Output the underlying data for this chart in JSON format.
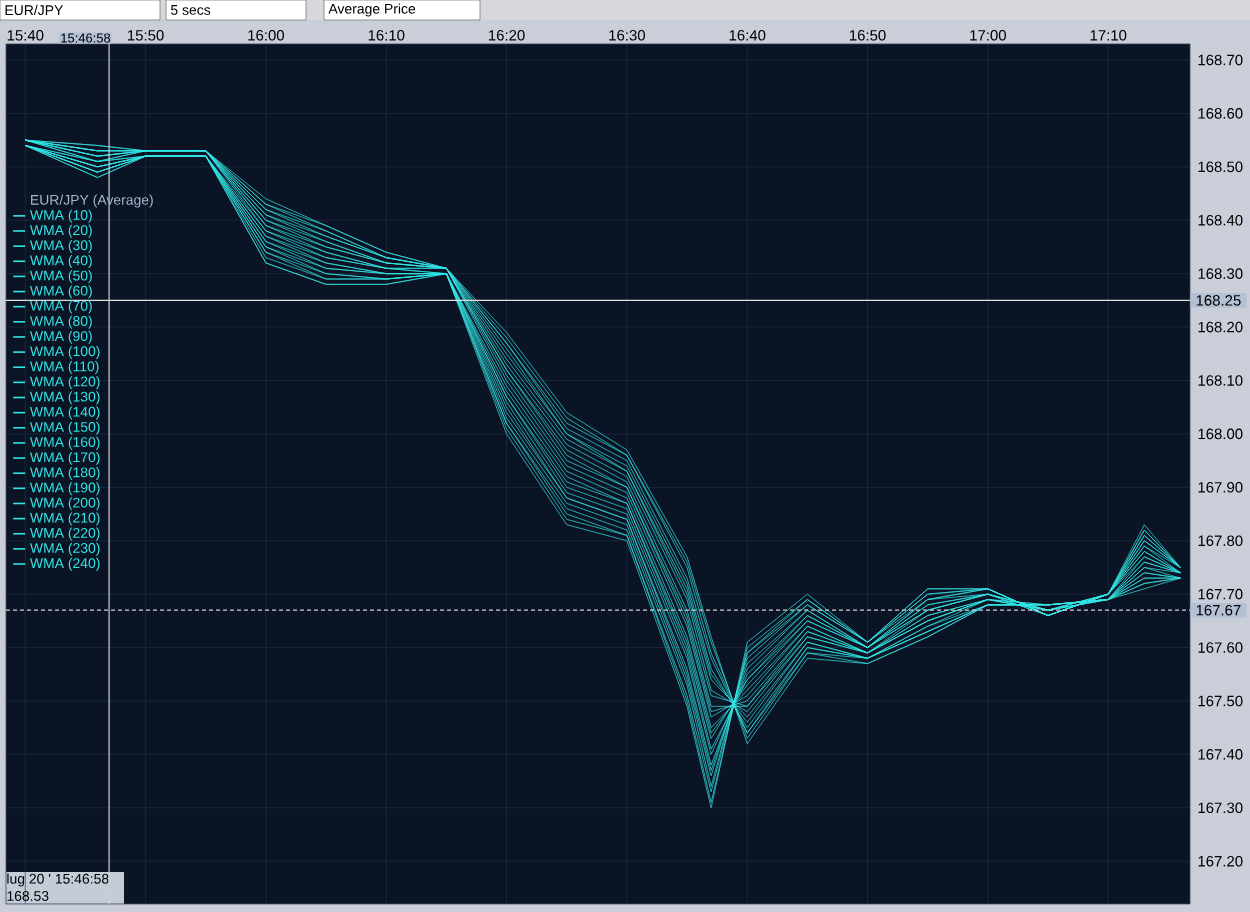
{
  "chart_data": {
    "type": "line",
    "legend_title": "EUR/JPY (Average)",
    "annotations": [
      "EUR/JPY",
      "5 secs",
      "Average Price",
      "lug 20 ' 15:46:58",
      "168.53",
      "15:46:58"
    ],
    "x": [
      15.6667,
      15.7667,
      15.8333,
      15.9167,
      16.0,
      16.0833,
      16.1667,
      16.25,
      16.3333,
      16.4167,
      16.5,
      16.5833,
      16.6167,
      16.6667,
      16.75,
      16.8333,
      16.9167,
      17.0,
      17.0833,
      17.1667,
      17.2167,
      17.2667
    ],
    "xlim": [
      15.64,
      17.28
    ],
    "xticks": [
      {
        "value": 15.6667,
        "label": "15:40"
      },
      {
        "value": 15.8333,
        "label": "15:50"
      },
      {
        "value": 16.0,
        "label": "16:00"
      },
      {
        "value": 16.1667,
        "label": "16:10"
      },
      {
        "value": 16.3333,
        "label": "16:20"
      },
      {
        "value": 16.5,
        "label": "16:30"
      },
      {
        "value": 16.6667,
        "label": "16:40"
      },
      {
        "value": 16.8333,
        "label": "16:50"
      },
      {
        "value": 17.0,
        "label": "17:00"
      },
      {
        "value": 17.1667,
        "label": "17:10"
      }
    ],
    "ylim": [
      167.12,
      168.73
    ],
    "yticks": [
      {
        "value": 167.2,
        "label": "167.20"
      },
      {
        "value": 167.3,
        "label": "167.30"
      },
      {
        "value": 167.4,
        "label": "167.40"
      },
      {
        "value": 167.5,
        "label": "167.50"
      },
      {
        "value": 167.6,
        "label": "167.60"
      },
      {
        "value": 167.7,
        "label": "167.70"
      },
      {
        "value": 167.8,
        "label": "167.80"
      },
      {
        "value": 167.9,
        "label": "167.90"
      },
      {
        "value": 168.0,
        "label": "168.00"
      },
      {
        "value": 168.1,
        "label": "168.10"
      },
      {
        "value": 168.2,
        "label": "168.20"
      },
      {
        "value": 168.3,
        "label": "168.30"
      },
      {
        "value": 168.4,
        "label": "168.40"
      },
      {
        "value": 168.5,
        "label": "168.50"
      },
      {
        "value": 168.6,
        "label": "168.60"
      },
      {
        "value": 168.7,
        "label": "168.70"
      }
    ],
    "grid": true,
    "legend": "left",
    "marker": "none",
    "line_style": "solid",
    "ref_lines": [
      {
        "axis": "y",
        "value": 168.25,
        "label": "168.25",
        "color": "#e0e0e0",
        "line_style": "solid"
      },
      {
        "axis": "y",
        "value": 167.67,
        "label": "167.67",
        "color": "#d0d0d0",
        "line_style": "dashed"
      },
      {
        "axis": "x",
        "value": 15.78278,
        "color": "#d0d0d0",
        "line_style": "solid"
      }
    ],
    "series": [
      {
        "name": "WMA (10)",
        "color": "#33e6e6",
        "values": [
          168.54,
          168.48,
          168.52,
          168.52,
          168.32,
          168.28,
          168.28,
          168.3,
          168.0,
          167.83,
          167.8,
          167.49,
          167.3,
          167.61,
          167.7,
          167.61,
          167.71,
          167.71,
          167.66,
          167.7,
          167.83,
          167.75
        ]
      },
      {
        "name": "WMA (20)",
        "color": "#33e6e6",
        "values": [
          168.54,
          168.48,
          168.52,
          168.52,
          168.32,
          168.28,
          168.28,
          168.3,
          168.01,
          167.84,
          167.81,
          167.5,
          167.31,
          167.6,
          167.69,
          167.61,
          167.71,
          167.71,
          167.66,
          167.7,
          167.82,
          167.75
        ]
      },
      {
        "name": "WMA (30)",
        "color": "#33e6e6",
        "values": [
          168.54,
          168.49,
          168.52,
          168.52,
          168.33,
          168.29,
          168.29,
          168.3,
          168.02,
          167.85,
          167.81,
          167.51,
          167.33,
          167.59,
          167.69,
          167.61,
          167.7,
          167.71,
          167.66,
          167.7,
          167.82,
          167.75
        ]
      },
      {
        "name": "WMA (40)",
        "color": "#33e6e6",
        "values": [
          168.54,
          168.49,
          168.52,
          168.52,
          168.34,
          168.29,
          168.29,
          168.3,
          168.02,
          167.86,
          167.82,
          167.53,
          167.34,
          167.59,
          167.68,
          167.61,
          167.7,
          167.71,
          167.66,
          167.7,
          167.81,
          167.75
        ]
      },
      {
        "name": "WMA (50)",
        "color": "#33e6e6",
        "values": [
          168.54,
          168.49,
          168.52,
          168.52,
          168.34,
          168.3,
          168.29,
          168.3,
          168.03,
          167.87,
          167.83,
          167.54,
          167.36,
          167.58,
          167.68,
          167.61,
          167.69,
          167.71,
          167.66,
          167.7,
          167.81,
          167.75
        ]
      },
      {
        "name": "WMA (60)",
        "color": "#33e6e6",
        "values": [
          168.54,
          168.49,
          168.52,
          168.52,
          168.35,
          168.3,
          168.29,
          168.3,
          168.04,
          167.88,
          167.84,
          167.55,
          167.37,
          167.57,
          167.67,
          167.6,
          167.69,
          167.71,
          167.66,
          167.7,
          167.8,
          167.75
        ]
      },
      {
        "name": "WMA (70)",
        "color": "#33e6e6",
        "values": [
          168.54,
          168.5,
          168.52,
          168.52,
          168.35,
          168.31,
          168.3,
          168.3,
          168.05,
          167.88,
          167.84,
          167.56,
          167.38,
          167.56,
          167.67,
          167.6,
          167.69,
          167.7,
          167.66,
          167.7,
          167.8,
          167.75
        ]
      },
      {
        "name": "WMA (80)",
        "color": "#33e6e6",
        "values": [
          168.54,
          168.5,
          168.52,
          168.52,
          168.36,
          168.31,
          168.3,
          168.3,
          168.06,
          167.89,
          167.85,
          167.58,
          167.4,
          167.55,
          167.66,
          167.6,
          167.68,
          167.7,
          167.66,
          167.7,
          167.79,
          167.75
        ]
      },
      {
        "name": "WMA (90)",
        "color": "#33e6e6",
        "values": [
          168.54,
          168.5,
          168.52,
          168.52,
          168.36,
          168.32,
          168.3,
          168.3,
          168.07,
          167.9,
          167.86,
          167.59,
          167.41,
          167.54,
          167.66,
          167.6,
          167.68,
          167.7,
          167.67,
          167.7,
          167.79,
          167.74
        ]
      },
      {
        "name": "WMA (100)",
        "color": "#33e6e6",
        "values": [
          168.54,
          168.5,
          168.52,
          168.52,
          168.37,
          168.32,
          168.3,
          168.3,
          168.07,
          167.91,
          167.87,
          167.6,
          167.43,
          167.54,
          167.65,
          167.6,
          167.67,
          167.7,
          167.67,
          167.7,
          167.78,
          167.74
        ]
      },
      {
        "name": "WMA (110)",
        "color": "#33e6e6",
        "values": [
          168.54,
          168.51,
          168.52,
          168.52,
          168.37,
          168.33,
          168.31,
          168.3,
          168.08,
          167.92,
          167.87,
          167.61,
          167.44,
          167.53,
          167.65,
          167.6,
          167.67,
          167.7,
          167.67,
          167.7,
          167.78,
          167.74
        ]
      },
      {
        "name": "WMA (120)",
        "color": "#33e6e6",
        "values": [
          168.54,
          168.51,
          168.52,
          168.52,
          168.38,
          168.33,
          168.31,
          168.3,
          168.09,
          167.93,
          167.88,
          167.62,
          167.45,
          167.52,
          167.64,
          167.59,
          167.67,
          167.7,
          167.67,
          167.7,
          167.77,
          167.74
        ]
      },
      {
        "name": "WMA (130)",
        "color": "#33e6e6",
        "values": [
          168.55,
          168.51,
          168.53,
          168.53,
          168.38,
          168.34,
          168.31,
          168.31,
          168.1,
          167.94,
          167.89,
          167.64,
          167.47,
          167.51,
          167.64,
          167.59,
          167.66,
          167.69,
          167.67,
          167.69,
          167.77,
          167.74
        ]
      },
      {
        "name": "WMA (140)",
        "color": "#33e6e6",
        "values": [
          168.55,
          168.51,
          168.53,
          168.53,
          168.39,
          168.34,
          168.31,
          168.31,
          168.11,
          167.95,
          167.9,
          167.65,
          167.48,
          167.5,
          167.63,
          167.59,
          167.66,
          167.69,
          167.67,
          167.69,
          167.76,
          167.74
        ]
      },
      {
        "name": "WMA (150)",
        "color": "#33e6e6",
        "values": [
          168.55,
          168.52,
          168.53,
          168.53,
          168.39,
          168.35,
          168.32,
          168.31,
          168.12,
          167.96,
          167.9,
          167.66,
          167.49,
          167.49,
          167.63,
          167.59,
          167.65,
          167.69,
          167.67,
          167.69,
          167.76,
          167.74
        ]
      },
      {
        "name": "WMA (160)",
        "color": "#33e6e6",
        "values": [
          168.55,
          168.52,
          168.53,
          168.53,
          168.4,
          168.35,
          168.32,
          168.31,
          168.12,
          167.97,
          167.91,
          167.67,
          167.51,
          167.49,
          167.62,
          167.59,
          167.65,
          167.69,
          167.67,
          167.69,
          167.75,
          167.74
        ]
      },
      {
        "name": "WMA (170)",
        "color": "#33e6e6",
        "values": [
          168.55,
          168.52,
          168.53,
          168.53,
          168.4,
          168.36,
          168.32,
          168.31,
          168.13,
          167.98,
          167.92,
          167.69,
          167.52,
          167.48,
          167.62,
          167.59,
          167.65,
          167.69,
          167.68,
          167.69,
          167.75,
          167.73
        ]
      },
      {
        "name": "WMA (180)",
        "color": "#33e6e6",
        "values": [
          168.55,
          168.52,
          168.53,
          168.53,
          168.41,
          168.36,
          168.32,
          168.31,
          168.14,
          167.99,
          167.93,
          167.7,
          167.54,
          167.47,
          167.61,
          167.58,
          167.64,
          167.69,
          167.68,
          167.69,
          167.74,
          167.73
        ]
      },
      {
        "name": "WMA (190)",
        "color": "#33e6e6",
        "values": [
          168.55,
          168.53,
          168.53,
          168.53,
          168.41,
          168.37,
          168.33,
          168.31,
          168.15,
          168.0,
          167.93,
          167.71,
          167.55,
          167.46,
          167.61,
          167.58,
          167.64,
          167.68,
          167.68,
          167.69,
          167.74,
          167.73
        ]
      },
      {
        "name": "WMA (200)",
        "color": "#33e6e6",
        "values": [
          168.55,
          168.53,
          168.53,
          168.53,
          168.42,
          168.37,
          168.33,
          168.31,
          168.16,
          168.0,
          167.94,
          167.72,
          167.56,
          167.45,
          167.6,
          167.58,
          167.63,
          167.68,
          167.68,
          167.69,
          167.73,
          167.73
        ]
      },
      {
        "name": "WMA (210)",
        "color": "#33e6e6",
        "values": [
          168.55,
          168.53,
          168.53,
          168.53,
          168.42,
          168.38,
          168.33,
          168.31,
          168.17,
          168.01,
          167.95,
          167.73,
          167.58,
          167.44,
          167.6,
          167.58,
          167.63,
          167.68,
          167.68,
          167.69,
          167.73,
          167.73
        ]
      },
      {
        "name": "WMA (220)",
        "color": "#33e6e6",
        "values": [
          168.55,
          168.53,
          168.53,
          168.53,
          168.43,
          168.38,
          168.33,
          168.31,
          168.17,
          168.02,
          167.96,
          167.75,
          167.59,
          167.44,
          167.59,
          167.58,
          167.63,
          167.68,
          167.68,
          167.69,
          167.72,
          167.73
        ]
      },
      {
        "name": "WMA (230)",
        "color": "#33e6e6",
        "values": [
          168.55,
          168.54,
          168.53,
          168.53,
          168.43,
          168.39,
          168.34,
          168.31,
          168.18,
          168.03,
          167.96,
          167.76,
          167.61,
          167.43,
          167.59,
          167.57,
          167.62,
          167.68,
          167.68,
          167.69,
          167.72,
          167.73
        ]
      },
      {
        "name": "WMA (240)",
        "color": "#33e6e6",
        "values": [
          168.55,
          168.54,
          168.53,
          168.53,
          168.44,
          168.39,
          168.34,
          168.31,
          168.19,
          168.04,
          167.97,
          167.77,
          167.62,
          167.42,
          167.58,
          167.57,
          167.62,
          167.68,
          167.68,
          167.69,
          167.71,
          167.73
        ]
      }
    ]
  }
}
